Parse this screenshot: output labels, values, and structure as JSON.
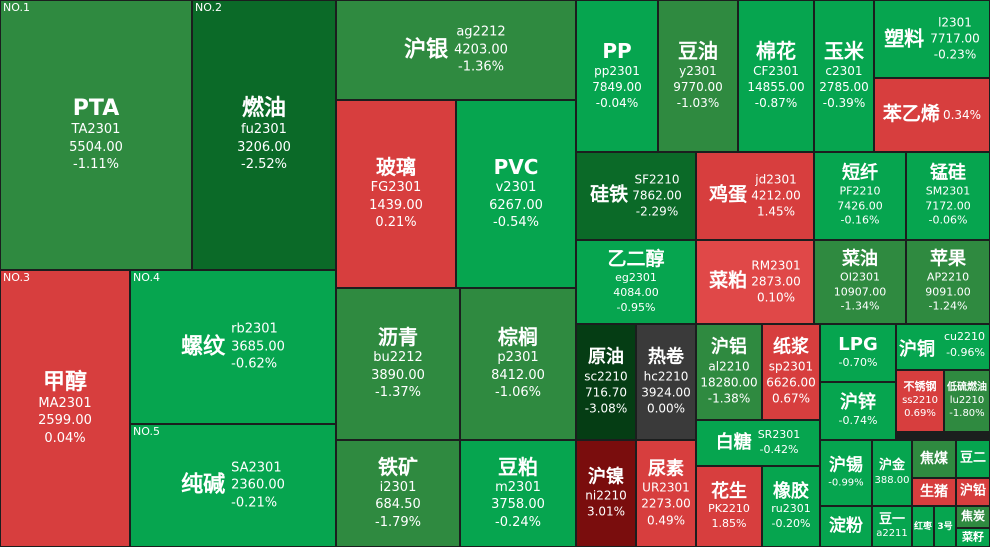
{
  "colors": {
    "bg": "#1b1e1e",
    "green": "#06a54f",
    "green_mid": "#2f8a40",
    "green_dark": "#0b6a28",
    "green_deep": "#053d14",
    "red": "#d73e3e",
    "red_light": "#e04848",
    "red_dark": "#7a0d0d",
    "gray": "#3a3a3a"
  },
  "tiles": [
    {
      "rank": "NO.1",
      "name": "PTA",
      "code": "TA2301",
      "price": "5504.00",
      "change": "-1.11%"
    },
    {
      "rank": "NO.2",
      "name": "燃油",
      "code": "fu2301",
      "price": "3206.00",
      "change": "-2.52%"
    },
    {
      "rank": "NO.3",
      "name": "甲醇",
      "code": "MA2301",
      "price": "2599.00",
      "change": "0.04%"
    },
    {
      "rank": "NO.4",
      "name": "螺纹",
      "code": "rb2301",
      "price": "3685.00",
      "change": "-0.62%"
    },
    {
      "rank": "NO.5",
      "name": "纯碱",
      "code": "SA2301",
      "price": "2360.00",
      "change": "-0.21%"
    },
    {
      "name": "沪银",
      "code": "ag2212",
      "price": "4203.00",
      "change": "-1.36%"
    },
    {
      "name": "玻璃",
      "code": "FG2301",
      "price": "1439.00",
      "change": "0.21%"
    },
    {
      "name": "PVC",
      "code": "v2301",
      "price": "6267.00",
      "change": "-0.54%"
    },
    {
      "name": "沥青",
      "code": "bu2212",
      "price": "3890.00",
      "change": "-1.37%"
    },
    {
      "name": "棕榈",
      "code": "p2301",
      "price": "8412.00",
      "change": "-1.06%"
    },
    {
      "name": "铁矿",
      "code": "i2301",
      "price": "684.50",
      "change": "-1.79%"
    },
    {
      "name": "豆粕",
      "code": "m2301",
      "price": "3758.00",
      "change": "-0.24%"
    },
    {
      "name": "PP",
      "code": "pp2301",
      "price": "7849.00",
      "change": "-0.04%"
    },
    {
      "name": "豆油",
      "code": "y2301",
      "price": "9770.00",
      "change": "-1.03%"
    },
    {
      "name": "棉花",
      "code": "CF2301",
      "price": "14855.00",
      "change": "-0.87%"
    },
    {
      "name": "玉米",
      "code": "c2301",
      "price": "2785.00",
      "change": "-0.39%"
    },
    {
      "name": "塑料",
      "code": "l2301",
      "price": "7717.00",
      "change": "-0.23%"
    },
    {
      "name": "苯乙烯",
      "change": "0.34%"
    },
    {
      "name": "硅铁",
      "code": "SF2210",
      "price": "7862.00",
      "change": "-2.29%"
    },
    {
      "name": "鸡蛋",
      "code": "jd2301",
      "price": "4212.00",
      "change": "1.45%"
    },
    {
      "name": "短纤",
      "code": "PF2210",
      "price": "7426.00",
      "change": "-0.16%"
    },
    {
      "name": "锰硅",
      "code": "SM2301",
      "price": "7172.00",
      "change": "-0.06%"
    },
    {
      "name": "乙二醇",
      "code": "eg2301",
      "price": "4084.00",
      "change": "-0.95%"
    },
    {
      "name": "菜粕",
      "code": "RM2301",
      "price": "2873.00",
      "change": "0.10%"
    },
    {
      "name": "菜油",
      "code": "OI2301",
      "price": "10907.00",
      "change": "-1.34%"
    },
    {
      "name": "苹果",
      "code": "AP2210",
      "price": "9091.00",
      "change": "-1.24%"
    },
    {
      "name": "原油",
      "code": "sc2210",
      "price": "716.70",
      "change": "-3.08%"
    },
    {
      "name": "热卷",
      "code": "hc2210",
      "price": "3924.00",
      "change": "0.00%"
    },
    {
      "name": "沪铝",
      "code": "al2210",
      "price": "18280.00",
      "change": "-1.38%"
    },
    {
      "name": "纸浆",
      "code": "sp2301",
      "price": "6626.00",
      "change": "0.67%"
    },
    {
      "name": "LPG",
      "change": "-0.70%"
    },
    {
      "name": "沪铜",
      "code": "cu2210",
      "change": "-0.96%"
    },
    {
      "name": "不锈钢",
      "code": "ss2210",
      "change": "0.69%"
    },
    {
      "name": "低硫燃油",
      "code": "lu2210",
      "change": "-1.80%"
    },
    {
      "name": "沪锌",
      "change": "-0.74%"
    },
    {
      "name": "白糖",
      "code": "SR2301",
      "change": "-0.42%"
    },
    {
      "name": "沪镍",
      "code": "ni2210",
      "change": "3.01%"
    },
    {
      "name": "尿素",
      "code": "UR2301",
      "price": "2273.00",
      "change": "0.49%"
    },
    {
      "name": "花生",
      "code": "PK2210",
      "change": "1.85%"
    },
    {
      "name": "橡胶",
      "code": "ru2301",
      "change": "-0.20%"
    },
    {
      "name": "沪锡",
      "change": "-0.99%"
    },
    {
      "name": "沪金",
      "change": "388.00"
    },
    {
      "name": "焦煤"
    },
    {
      "name": "豆二"
    },
    {
      "name": "生猪"
    },
    {
      "name": "沪铅"
    },
    {
      "name": "淀粉"
    },
    {
      "name": "豆一",
      "code": "a2211"
    },
    {
      "name": "红枣"
    },
    {
      "name": "3号"
    },
    {
      "name": "焦炭"
    },
    {
      "name": "菜籽"
    }
  ]
}
